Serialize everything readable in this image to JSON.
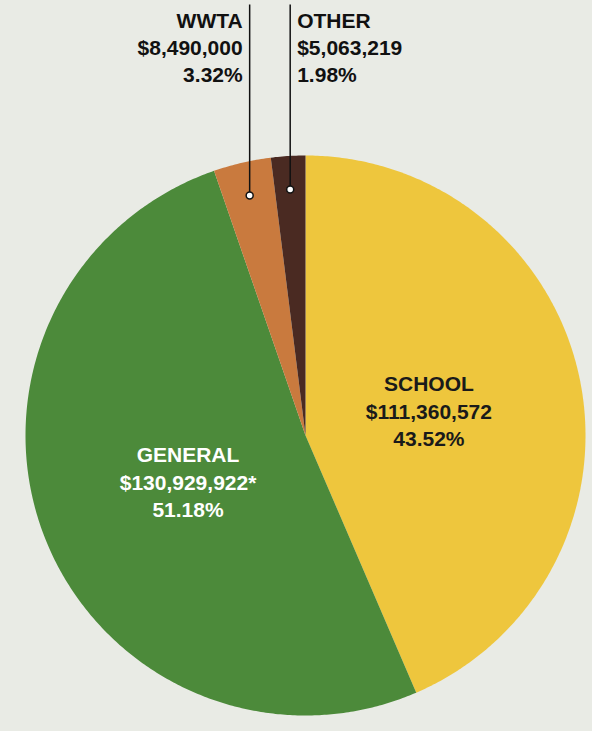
{
  "chart_data": {
    "type": "pie",
    "categories": [
      "SCHOOL",
      "GENERAL",
      "WWTA",
      "OTHER"
    ],
    "values": [
      111360572,
      130929922,
      8490000,
      5063219
    ],
    "value_labels": [
      "$111,360,572",
      "$130,929,922*",
      "$8,490,000",
      "$5,063,219"
    ],
    "percents": [
      43.52,
      51.18,
      3.32,
      1.98
    ],
    "percent_labels": [
      "43.52%",
      "51.18%",
      "3.32%",
      "1.98%"
    ],
    "colors": [
      "#eec63d",
      "#4c8a3a",
      "#c97a3e",
      "#4a2a22"
    ],
    "data_labels": true
  }
}
